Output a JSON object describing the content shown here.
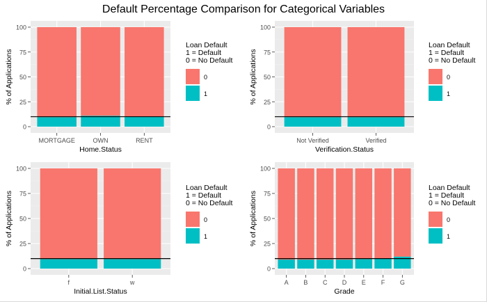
{
  "title": "Default Percentage Comparison for Categorical Variables",
  "colors": {
    "panel_bg": "#ebebeb",
    "grid_major": "#ffffff",
    "grid_minor": "#f3f3f3",
    "class_0": "#f8766d",
    "class_1": "#00bfc4",
    "ref_line": "#000000",
    "tick_text": "#4d4d4d"
  },
  "chart_data": [
    {
      "type": "bar",
      "stacked": true,
      "xlabel": "Home.Status",
      "ylabel": "% of Applications",
      "ylim": [
        0,
        100
      ],
      "yticks": [
        0,
        25,
        50,
        75,
        100
      ],
      "categories": [
        "MORTGAGE",
        "OWN",
        "RENT"
      ],
      "series": [
        {
          "name": "1",
          "values": [
            9.5,
            11,
            10
          ]
        },
        {
          "name": "0",
          "values": [
            90.5,
            89,
            90
          ]
        }
      ],
      "hline": 10,
      "grid": true,
      "legend": {
        "title": [
          "Loan Default",
          "1 = Default",
          "0 = No Default"
        ],
        "labels": [
          "0",
          "1"
        ],
        "position": "right"
      }
    },
    {
      "type": "bar",
      "stacked": true,
      "xlabel": "Verification.Status",
      "ylabel": "% of Applications",
      "ylim": [
        0,
        100
      ],
      "yticks": [
        0,
        25,
        50,
        75,
        100
      ],
      "categories": [
        "Not Verified",
        "Verified"
      ],
      "series": [
        {
          "name": "1",
          "values": [
            9.5,
            9.5
          ]
        },
        {
          "name": "0",
          "values": [
            90.5,
            90.5
          ]
        }
      ],
      "hline": 10,
      "grid": true,
      "legend": {
        "title": [
          "Loan Default",
          "1 = Default",
          "0 = No Default"
        ],
        "labels": [
          "0",
          "1"
        ],
        "position": "right"
      }
    },
    {
      "type": "bar",
      "stacked": true,
      "xlabel": "Initial.List.Status",
      "ylabel": "% of Applications",
      "ylim": [
        0,
        100
      ],
      "yticks": [
        0,
        25,
        50,
        75,
        100
      ],
      "categories": [
        "f",
        "w"
      ],
      "series": [
        {
          "name": "1",
          "values": [
            9.5,
            9.5
          ]
        },
        {
          "name": "0",
          "values": [
            90.5,
            90.5
          ]
        }
      ],
      "hline": 10,
      "grid": true,
      "legend": {
        "title": [
          "Loan Default",
          "1 = Default",
          "0 = No Default"
        ],
        "labels": [
          "0",
          "1"
        ],
        "position": "right"
      }
    },
    {
      "type": "bar",
      "stacked": true,
      "xlabel": "Grade",
      "ylabel": "% of Applications",
      "ylim": [
        0,
        100
      ],
      "yticks": [
        0,
        25,
        50,
        75,
        100
      ],
      "categories": [
        "A",
        "B",
        "C",
        "D",
        "E",
        "F",
        "G"
      ],
      "series": [
        {
          "name": "1",
          "values": [
            9,
            9,
            9,
            9,
            9.5,
            10,
            12
          ]
        },
        {
          "name": "0",
          "values": [
            91,
            91,
            91,
            91,
            90.5,
            90,
            88
          ]
        }
      ],
      "hline": 10,
      "grid": true,
      "legend": {
        "title": [
          "Loan Default",
          "1 = Default",
          "0 = No Default"
        ],
        "labels": [
          "0",
          "1"
        ],
        "position": "right"
      }
    }
  ]
}
